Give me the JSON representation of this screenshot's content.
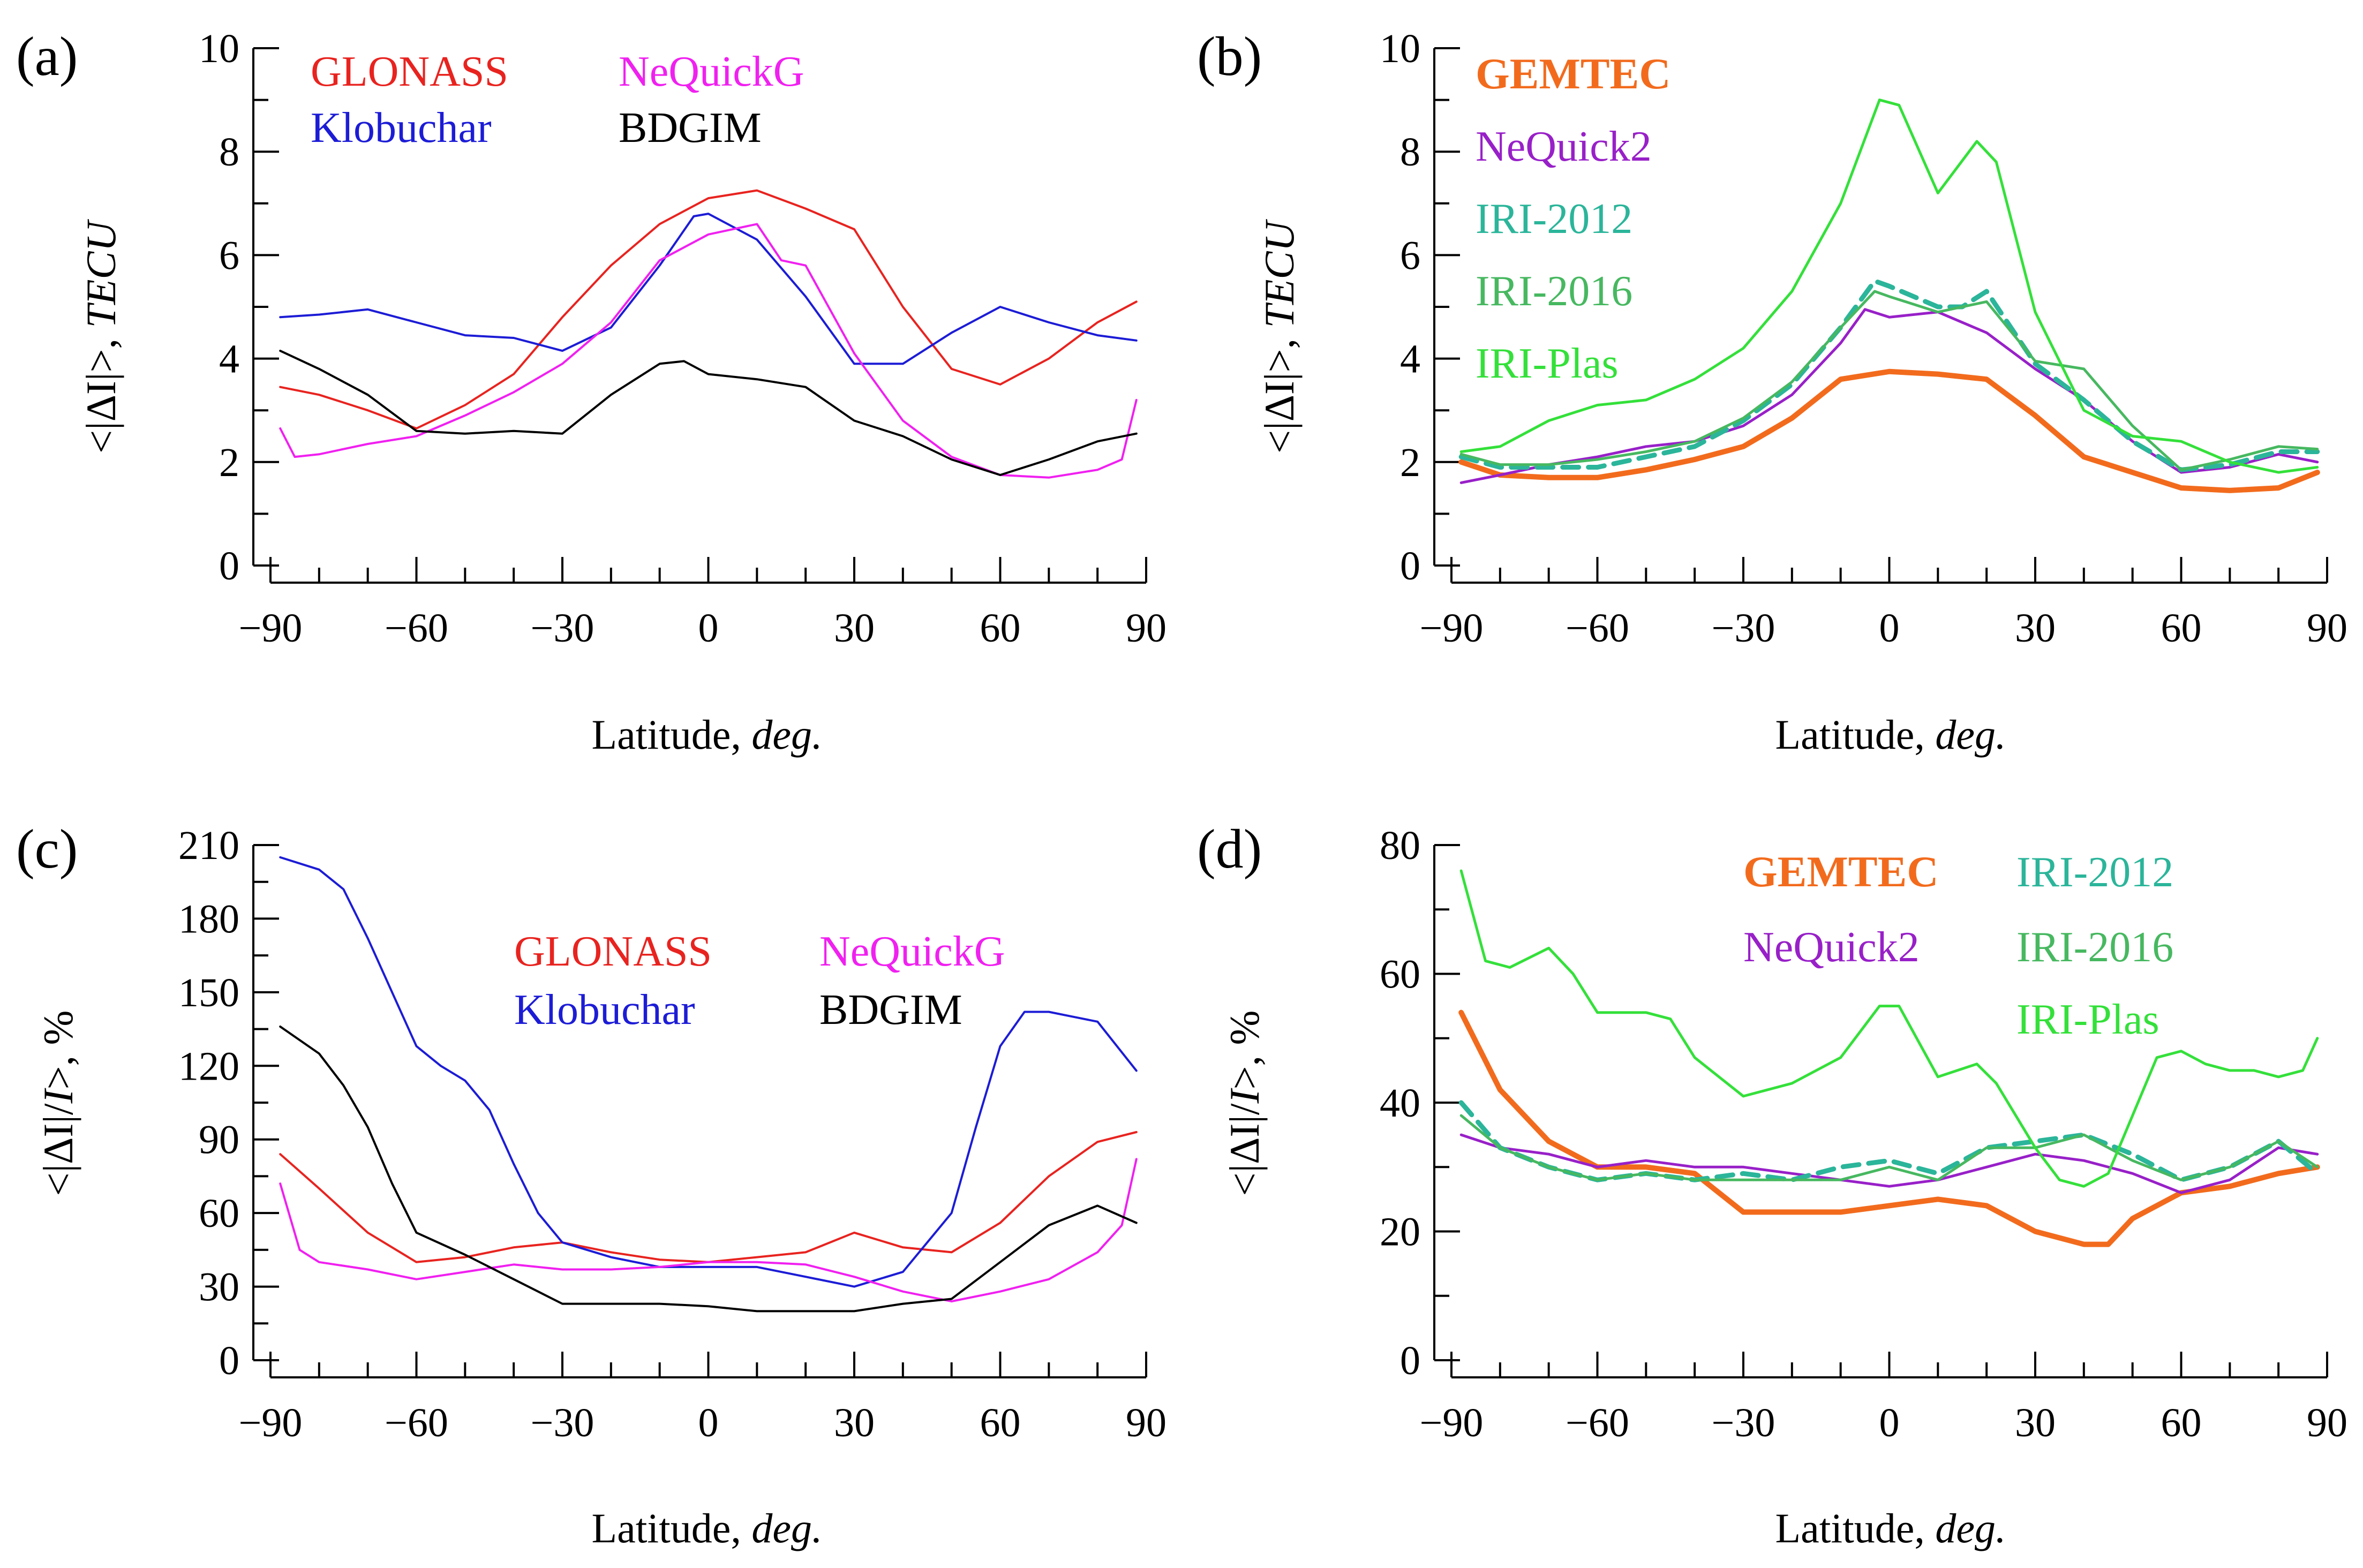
{
  "chart_data": [
    {
      "panel": "(a)",
      "type": "line",
      "title": "",
      "xlabel": "Latitude, ",
      "xlabel_unit": "deg.",
      "ylabel_prefix": "<|ΔI|>, ",
      "ylabel_unit": "TECU",
      "xlim": [
        -90,
        90
      ],
      "ylim": [
        0,
        10
      ],
      "xticks": [
        "−90",
        "−60",
        "−30",
        "0",
        "30",
        "60",
        "90"
      ],
      "yticks": [
        "0",
        "2",
        "4",
        "6",
        "8",
        "10"
      ],
      "legend": [
        "GLONASS",
        "Klobuchar",
        "NeQuickG",
        "BDGIM"
      ],
      "series": [
        {
          "name": "GLONASS",
          "color": "#e8231f",
          "width": 4,
          "dash": "",
          "x": [
            -88,
            -80,
            -70,
            -60,
            -50,
            -40,
            -30,
            -20,
            -10,
            0,
            10,
            20,
            30,
            40,
            50,
            60,
            70,
            80,
            88
          ],
          "y": [
            3.45,
            3.3,
            3.0,
            2.65,
            3.1,
            3.7,
            4.8,
            5.8,
            6.6,
            7.1,
            7.25,
            6.9,
            6.5,
            5.0,
            3.8,
            3.5,
            4.0,
            4.7,
            5.1
          ]
        },
        {
          "name": "Klobuchar",
          "color": "#1c1cd6",
          "width": 4,
          "dash": "",
          "x": [
            -88,
            -80,
            -70,
            -60,
            -50,
            -40,
            -30,
            -20,
            -10,
            -3,
            0,
            10,
            20,
            30,
            40,
            50,
            60,
            70,
            80,
            88
          ],
          "y": [
            4.8,
            4.85,
            4.95,
            4.7,
            4.45,
            4.4,
            4.15,
            4.6,
            5.8,
            6.75,
            6.8,
            6.3,
            5.2,
            3.9,
            3.9,
            4.5,
            5.0,
            4.7,
            4.45,
            4.35
          ]
        },
        {
          "name": "NeQuickG",
          "color": "#f020f0",
          "width": 4,
          "dash": "",
          "x": [
            -88,
            -85,
            -80,
            -70,
            -60,
            -50,
            -40,
            -30,
            -20,
            -10,
            0,
            10,
            15,
            20,
            30,
            40,
            50,
            60,
            70,
            80,
            85,
            88
          ],
          "y": [
            2.65,
            2.1,
            2.15,
            2.35,
            2.5,
            2.9,
            3.35,
            3.9,
            4.7,
            5.9,
            6.4,
            6.6,
            5.9,
            5.8,
            4.1,
            2.8,
            2.1,
            1.75,
            1.7,
            1.85,
            2.05,
            3.2
          ]
        },
        {
          "name": "BDGIM",
          "color": "#000000",
          "width": 4,
          "dash": "",
          "x": [
            -88,
            -80,
            -70,
            -60,
            -50,
            -40,
            -30,
            -20,
            -10,
            -5,
            0,
            10,
            20,
            30,
            40,
            50,
            60,
            70,
            80,
            88
          ],
          "y": [
            4.15,
            3.8,
            3.3,
            2.6,
            2.55,
            2.6,
            2.55,
            3.3,
            3.9,
            3.95,
            3.7,
            3.6,
            3.45,
            2.8,
            2.5,
            2.05,
            1.75,
            2.05,
            2.4,
            2.55
          ]
        }
      ]
    },
    {
      "panel": "(b)",
      "type": "line",
      "title": "",
      "xlabel": "Latitude, ",
      "xlabel_unit": "deg.",
      "ylabel_prefix": "<|ΔI|>, ",
      "ylabel_unit": "TECU",
      "xlim": [
        -90,
        90
      ],
      "ylim": [
        0,
        10
      ],
      "xticks": [
        "−90",
        "−60",
        "−30",
        "0",
        "30",
        "60",
        "90"
      ],
      "yticks": [
        "0",
        "2",
        "4",
        "6",
        "8",
        "10"
      ],
      "legend": [
        "GEMTEC",
        "NeQuick2",
        "IRI-2012",
        "IRI-2016",
        "IRI-Plas"
      ],
      "series": [
        {
          "name": "GEMTEC",
          "color": "#f26b1d",
          "width": 10,
          "dash": "",
          "x": [
            -88,
            -80,
            -70,
            -60,
            -50,
            -40,
            -30,
            -20,
            -10,
            0,
            10,
            20,
            30,
            40,
            50,
            60,
            70,
            80,
            88
          ],
          "y": [
            2.0,
            1.75,
            1.7,
            1.7,
            1.85,
            2.05,
            2.3,
            2.85,
            3.6,
            3.75,
            3.7,
            3.6,
            2.9,
            2.1,
            1.8,
            1.5,
            1.45,
            1.5,
            1.8
          ]
        },
        {
          "name": "NeQuick2",
          "color": "#9820c8",
          "width": 5,
          "dash": "",
          "x": [
            -88,
            -80,
            -70,
            -60,
            -50,
            -40,
            -30,
            -20,
            -10,
            -5,
            0,
            10,
            20,
            30,
            40,
            50,
            60,
            70,
            80,
            88
          ],
          "y": [
            1.6,
            1.75,
            1.95,
            2.1,
            2.3,
            2.4,
            2.7,
            3.3,
            4.3,
            4.95,
            4.8,
            4.9,
            4.5,
            3.8,
            3.2,
            2.4,
            1.8,
            1.9,
            2.15,
            2.0
          ]
        },
        {
          "name": "IRI-2012",
          "color": "#2bb59a",
          "width": 9,
          "dash": "30,18",
          "x": [
            -88,
            -80,
            -70,
            -60,
            -50,
            -40,
            -30,
            -20,
            -10,
            -3,
            0,
            10,
            15,
            20,
            30,
            40,
            50,
            60,
            70,
            80,
            88
          ],
          "y": [
            2.1,
            1.9,
            1.9,
            1.9,
            2.1,
            2.3,
            2.8,
            3.5,
            4.6,
            5.5,
            5.4,
            5.0,
            5.0,
            5.3,
            3.9,
            3.2,
            2.4,
            1.85,
            1.95,
            2.2,
            2.2
          ]
        },
        {
          "name": "IRI-2016",
          "color": "#47b860",
          "width": 5,
          "dash": "",
          "x": [
            -88,
            -80,
            -70,
            -60,
            -50,
            -40,
            -30,
            -20,
            -10,
            -3,
            0,
            10,
            20,
            30,
            40,
            50,
            60,
            70,
            80,
            88
          ],
          "y": [
            2.15,
            1.95,
            1.95,
            2.05,
            2.2,
            2.4,
            2.85,
            3.55,
            4.6,
            5.3,
            5.2,
            4.9,
            5.1,
            3.95,
            3.8,
            2.7,
            1.85,
            2.05,
            2.3,
            2.25
          ]
        },
        {
          "name": "IRI-Plas",
          "color": "#34e03a",
          "width": 5,
          "dash": "",
          "x": [
            -88,
            -80,
            -70,
            -60,
            -50,
            -40,
            -30,
            -20,
            -10,
            -2,
            2,
            10,
            18,
            22,
            30,
            40,
            50,
            60,
            70,
            80,
            88
          ],
          "y": [
            2.2,
            2.3,
            2.8,
            3.1,
            3.2,
            3.6,
            4.2,
            5.3,
            7.0,
            9.0,
            8.9,
            7.2,
            8.2,
            7.8,
            4.9,
            3.0,
            2.5,
            2.4,
            2.0,
            1.8,
            1.9
          ]
        }
      ]
    },
    {
      "panel": "(c)",
      "type": "line",
      "title": "",
      "xlabel": "Latitude, ",
      "xlabel_unit": "deg.",
      "ylabel_prefix": "<|ΔI|/",
      "ylabel_unit": "I",
      "ylabel_suffix": ">, %",
      "xlim": [
        -90,
        90
      ],
      "ylim": [
        0,
        210
      ],
      "xticks": [
        "−90",
        "−60",
        "−30",
        "0",
        "30",
        "60",
        "90"
      ],
      "yticks": [
        "0",
        "30",
        "60",
        "90",
        "120",
        "150",
        "180",
        "210"
      ],
      "legend": [
        "GLONASS",
        "Klobuchar",
        "NeQuickG",
        "BDGIM"
      ],
      "series": [
        {
          "name": "GLONASS",
          "color": "#e8231f",
          "width": 4,
          "dash": "",
          "x": [
            -88,
            -80,
            -70,
            -60,
            -50,
            -40,
            -30,
            -20,
            -10,
            0,
            10,
            20,
            30,
            40,
            50,
            60,
            70,
            80,
            88
          ],
          "y": [
            84,
            70,
            52,
            40,
            42,
            46,
            48,
            44,
            41,
            40,
            42,
            44,
            52,
            46,
            44,
            56,
            75,
            89,
            93
          ]
        },
        {
          "name": "Klobuchar",
          "color": "#1c1cd6",
          "width": 4,
          "dash": "",
          "x": [
            -88,
            -80,
            -75,
            -70,
            -65,
            -60,
            -55,
            -50,
            -45,
            -40,
            -35,
            -30,
            -20,
            -10,
            0,
            10,
            20,
            30,
            40,
            50,
            55,
            60,
            65,
            70,
            75,
            80,
            88
          ],
          "y": [
            205,
            200,
            192,
            172,
            150,
            128,
            120,
            114,
            102,
            80,
            60,
            48,
            42,
            38,
            38,
            38,
            34,
            30,
            36,
            60,
            95,
            128,
            142,
            142,
            140,
            138,
            118
          ]
        },
        {
          "name": "NeQuickG",
          "color": "#f020f0",
          "width": 4,
          "dash": "",
          "x": [
            -88,
            -84,
            -80,
            -70,
            -60,
            -50,
            -40,
            -30,
            -20,
            -10,
            0,
            10,
            20,
            30,
            40,
            50,
            60,
            70,
            80,
            85,
            88
          ],
          "y": [
            72,
            45,
            40,
            37,
            33,
            36,
            39,
            37,
            37,
            38,
            40,
            40,
            39,
            34,
            28,
            24,
            28,
            33,
            44,
            55,
            82
          ]
        },
        {
          "name": "BDGIM",
          "color": "#000000",
          "width": 4,
          "dash": "",
          "x": [
            -88,
            -80,
            -75,
            -70,
            -65,
            -60,
            -50,
            -40,
            -30,
            -20,
            -10,
            0,
            10,
            20,
            30,
            40,
            50,
            60,
            70,
            80,
            88
          ],
          "y": [
            136,
            125,
            112,
            95,
            72,
            52,
            43,
            33,
            23,
            23,
            23,
            22,
            20,
            20,
            20,
            23,
            25,
            40,
            55,
            63,
            56
          ]
        }
      ]
    },
    {
      "panel": "(d)",
      "type": "line",
      "title": "",
      "xlabel": "Latitude, ",
      "xlabel_unit": "deg.",
      "ylabel_prefix": "<|ΔI|/",
      "ylabel_unit": "I",
      "ylabel_suffix": ">, %",
      "xlim": [
        -90,
        90
      ],
      "ylim": [
        0,
        80
      ],
      "xticks": [
        "−90",
        "−60",
        "−30",
        "0",
        "30",
        "60",
        "90"
      ],
      "yticks": [
        "0",
        "20",
        "40",
        "60",
        "80"
      ],
      "legend": [
        "GEMTEC",
        "NeQuick2",
        "IRI-2012",
        "IRI-2016",
        "IRI-Plas"
      ],
      "series": [
        {
          "name": "GEMTEC",
          "color": "#f26b1d",
          "width": 10,
          "dash": "",
          "x": [
            -88,
            -80,
            -70,
            -60,
            -50,
            -40,
            -30,
            -20,
            -10,
            0,
            10,
            20,
            30,
            40,
            45,
            50,
            60,
            70,
            80,
            88
          ],
          "y": [
            54,
            42,
            34,
            30,
            30,
            29,
            23,
            23,
            23,
            24,
            25,
            24,
            20,
            18,
            18,
            22,
            26,
            27,
            29,
            30
          ]
        },
        {
          "name": "NeQuick2",
          "color": "#9820c8",
          "width": 5,
          "dash": "",
          "x": [
            -88,
            -80,
            -70,
            -60,
            -50,
            -40,
            -30,
            -20,
            -10,
            0,
            10,
            20,
            30,
            40,
            50,
            60,
            70,
            80,
            88
          ],
          "y": [
            35,
            33,
            32,
            30,
            31,
            30,
            30,
            29,
            28,
            27,
            28,
            30,
            32,
            31,
            29,
            26,
            28,
            33,
            32
          ]
        },
        {
          "name": "IRI-2012",
          "color": "#2bb59a",
          "width": 9,
          "dash": "30,18",
          "x": [
            -88,
            -80,
            -70,
            -60,
            -50,
            -40,
            -30,
            -20,
            -10,
            0,
            10,
            20,
            30,
            40,
            50,
            60,
            70,
            80,
            88
          ],
          "y": [
            40,
            33,
            30,
            28,
            29,
            28,
            29,
            28,
            30,
            31,
            29,
            33,
            34,
            35,
            32,
            28,
            30,
            34,
            29
          ]
        },
        {
          "name": "IRI-2016",
          "color": "#47b860",
          "width": 5,
          "dash": "",
          "x": [
            -88,
            -80,
            -70,
            -60,
            -50,
            -40,
            -30,
            -20,
            -10,
            0,
            10,
            20,
            30,
            40,
            50,
            60,
            70,
            80,
            88
          ],
          "y": [
            38,
            33,
            30,
            28,
            29,
            28,
            28,
            28,
            28,
            30,
            28,
            33,
            33,
            35,
            31,
            28,
            30,
            34,
            30
          ]
        },
        {
          "name": "IRI-Plas",
          "color": "#34e03a",
          "width": 5,
          "dash": "",
          "x": [
            -88,
            -83,
            -78,
            -70,
            -65,
            -60,
            -50,
            -45,
            -40,
            -30,
            -20,
            -10,
            -2,
            2,
            10,
            18,
            22,
            30,
            35,
            40,
            45,
            50,
            55,
            60,
            65,
            70,
            75,
            80,
            85,
            88
          ],
          "y": [
            76,
            62,
            61,
            64,
            60,
            54,
            54,
            53,
            47,
            41,
            43,
            47,
            55,
            55,
            44,
            46,
            43,
            33,
            28,
            27,
            29,
            38,
            47,
            48,
            46,
            45,
            45,
            44,
            45,
            50
          ]
        }
      ]
    }
  ]
}
